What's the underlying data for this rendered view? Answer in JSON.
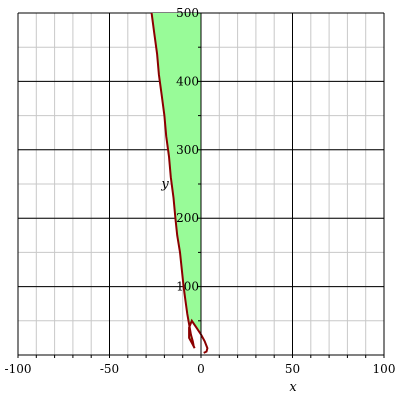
{
  "chart_data": {
    "type": "area",
    "title": "",
    "xlabel": "x",
    "ylabel": "y",
    "xlim": [
      -100,
      100
    ],
    "ylim": [
      0,
      500
    ],
    "x_ticks": [
      -100,
      -50,
      0,
      50,
      100
    ],
    "x_tick_labels": [
      "-100",
      "-50",
      "0",
      "50",
      "100"
    ],
    "y_ticks": [
      100,
      200,
      300,
      400,
      500
    ],
    "y_tick_labels": [
      "100",
      "200",
      "300",
      "400",
      "500"
    ],
    "major_grid": true,
    "minor_grid": true,
    "grid_color_major": "#000000",
    "grid_color_minor": "#c8c8c8",
    "fill_color": "#98fb98",
    "curve_color": "#8b0000",
    "region": {
      "description": "shaded region between boundary curve and x = 0",
      "right_boundary_x": 0
    },
    "boundary_curve": {
      "x": [
        -27,
        -25.5,
        -24,
        -23,
        -21.5,
        -20,
        -19,
        -17.5,
        -16.5,
        -15,
        -14,
        -13,
        -11.5,
        -10.5,
        -9.5,
        -8.5,
        -7.5,
        -6.5,
        -5.5,
        -4.5,
        -4,
        -3.5,
        -4.5,
        -6.5,
        -6.5,
        -5,
        -2.5,
        0,
        2,
        3.5,
        3,
        1.5
      ],
      "y": [
        500,
        470,
        440,
        410,
        380,
        350,
        320,
        290,
        260,
        230,
        200,
        175,
        150,
        125,
        100,
        80,
        60,
        45,
        30,
        20,
        13,
        10,
        15,
        25,
        40,
        50,
        40,
        30,
        20,
        10,
        5,
        3
      ]
    }
  }
}
